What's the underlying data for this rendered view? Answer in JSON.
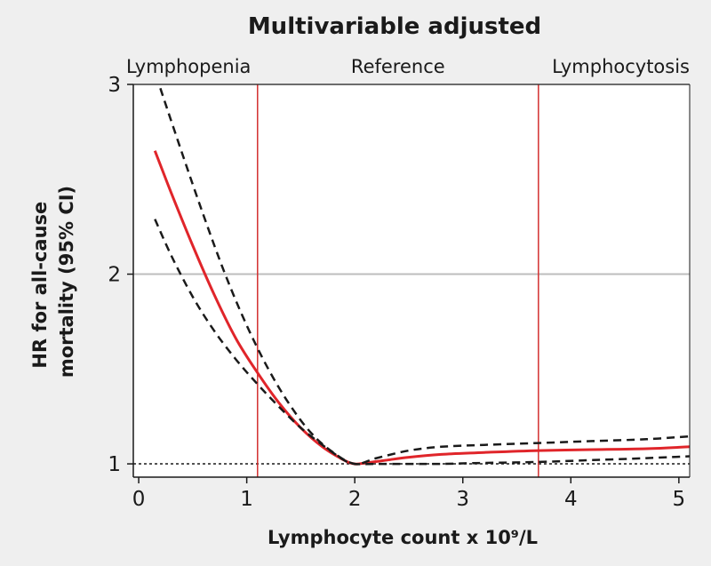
{
  "chart_data": {
    "type": "line",
    "title": "Multivariable adjusted",
    "xlabel": "Lymphocyte count x 10⁹/L",
    "ylabel_lines": [
      "HR for all-cause",
      "mortality (95% CI)"
    ],
    "xlim": [
      -0.05,
      5.1
    ],
    "ylim": [
      0.93,
      3.0
    ],
    "xticks": [
      0,
      1,
      2,
      3,
      4,
      5
    ],
    "yticks": [
      1,
      2,
      3
    ],
    "grid": "horizontal",
    "reference_line_y": 1,
    "cutoffs": [
      1.1,
      3.7
    ],
    "regions": [
      "Lymphopenia",
      "Reference",
      "Lymphocytosis"
    ],
    "colors": {
      "estimate": "#e0252a",
      "ci": "#1a1a1a",
      "cutoff": "#d32f2f",
      "grid": "#bdbdbd"
    },
    "series": [
      {
        "role": "estimate",
        "x": [
          0.15,
          0.3,
          0.5,
          0.7,
          0.9,
          1.1,
          1.3,
          1.5,
          1.7,
          1.9,
          2.0,
          2.1,
          2.3,
          2.5,
          2.8,
          3.2,
          3.7,
          4.2,
          4.7,
          5.1
        ],
        "y": [
          2.65,
          2.43,
          2.15,
          1.89,
          1.66,
          1.48,
          1.32,
          1.19,
          1.09,
          1.02,
          1.0,
          1.005,
          1.02,
          1.035,
          1.05,
          1.06,
          1.07,
          1.075,
          1.08,
          1.09
        ]
      },
      {
        "role": "ci-upper",
        "x": [
          0.2,
          0.4,
          0.6,
          0.8,
          1.0,
          1.2,
          1.4,
          1.6,
          1.8,
          2.0,
          2.2,
          2.5,
          2.8,
          3.2,
          3.7,
          4.2,
          4.7,
          5.1
        ],
        "y": [
          2.98,
          2.64,
          2.31,
          2.0,
          1.73,
          1.5,
          1.31,
          1.16,
          1.06,
          1.0,
          1.03,
          1.07,
          1.09,
          1.1,
          1.11,
          1.12,
          1.13,
          1.145
        ]
      },
      {
        "role": "ci-lower",
        "x": [
          0.15,
          0.3,
          0.5,
          0.7,
          0.9,
          1.1,
          1.3,
          1.5,
          1.7,
          1.9,
          2.0,
          2.2,
          2.5,
          2.8,
          3.2,
          3.7,
          4.2,
          4.7,
          5.1
        ],
        "y": [
          2.29,
          2.1,
          1.88,
          1.7,
          1.55,
          1.42,
          1.3,
          1.19,
          1.1,
          1.02,
          1.0,
          1.0,
          1.0,
          1.0,
          1.005,
          1.01,
          1.02,
          1.03,
          1.04
        ]
      }
    ]
  }
}
